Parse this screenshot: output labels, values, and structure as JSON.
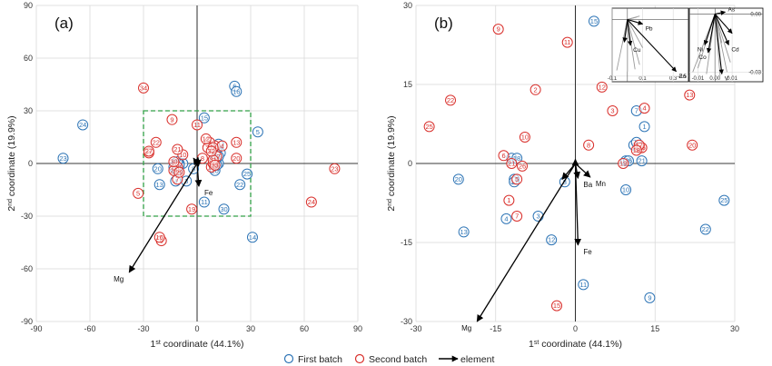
{
  "colors": {
    "first": "#2e75b6",
    "second": "#d9302c",
    "arrow": "#000000",
    "box": "#33a047",
    "grid": "#d9d9d9"
  },
  "legend": {
    "first": "First batch",
    "second": "Second batch",
    "element": "element"
  },
  "chart_data": [
    {
      "type": "scatter",
      "panel_label": "(a)",
      "xlabel_main": "1",
      "xlabel_sup": "st",
      "xlabel_rest": " coordinate (44.1%)",
      "ylabel_main": "2",
      "ylabel_sup": "nd",
      "ylabel_rest": " coordinate (19.9%)",
      "xlim": [
        -90,
        90
      ],
      "ylim": [
        -90,
        90
      ],
      "xticks": [
        -90,
        -60,
        -30,
        0,
        30,
        60,
        90
      ],
      "yticks": [
        -90,
        -60,
        -30,
        0,
        30,
        60,
        90
      ],
      "grid": true,
      "box": [
        -30,
        -30,
        30,
        30
      ],
      "first": [
        {
          "label": "1",
          "x": 10,
          "y": 2
        },
        {
          "label": "2",
          "x": 13,
          "y": 6
        },
        {
          "label": "3",
          "x": -6,
          "y": -10
        },
        {
          "label": "4",
          "x": -12,
          "y": -10
        },
        {
          "label": "5",
          "x": 34,
          "y": 18
        },
        {
          "label": "6",
          "x": 21,
          "y": 44
        },
        {
          "label": "7",
          "x": 12,
          "y": 11
        },
        {
          "label": "8",
          "x": -2,
          "y": -3
        },
        {
          "label": "9",
          "x": -8,
          "y": 0
        },
        {
          "label": "10",
          "x": 10,
          "y": -4
        },
        {
          "label": "11",
          "x": 4,
          "y": -22
        },
        {
          "label": "12",
          "x": 11,
          "y": 8
        },
        {
          "label": "13",
          "x": -21,
          "y": -12
        },
        {
          "label": "14",
          "x": 31,
          "y": -42
        },
        {
          "label": "15",
          "x": 4,
          "y": 26
        },
        {
          "label": "16",
          "x": 22,
          "y": 41
        },
        {
          "label": "17",
          "x": -10,
          "y": 0
        },
        {
          "label": "18",
          "x": -13,
          "y": -2
        },
        {
          "label": "19",
          "x": -11,
          "y": -4
        },
        {
          "label": "20",
          "x": -22,
          "y": -3
        },
        {
          "label": "21",
          "x": -10,
          "y": -1
        },
        {
          "label": "22",
          "x": 24,
          "y": -12
        },
        {
          "label": "23",
          "x": -75,
          "y": 3
        },
        {
          "label": "24",
          "x": -64,
          "y": 22
        },
        {
          "label": "25",
          "x": 28,
          "y": -6
        },
        {
          "label": "26",
          "x": 12,
          "y": 0
        },
        {
          "label": "27",
          "x": -11,
          "y": 1
        },
        {
          "label": "28",
          "x": 12,
          "y": 4
        },
        {
          "label": "29",
          "x": 11,
          "y": -1
        },
        {
          "label": "30",
          "x": 15,
          "y": -26
        }
      ],
      "second": [
        {
          "label": "1",
          "x": 10,
          "y": 10
        },
        {
          "label": "2",
          "x": 7,
          "y": 12
        },
        {
          "label": "3",
          "x": 6,
          "y": 9
        },
        {
          "label": "4",
          "x": 14,
          "y": 10
        },
        {
          "label": "5",
          "x": -33,
          "y": -17
        },
        {
          "label": "6",
          "x": -20,
          "y": -44
        },
        {
          "label": "7",
          "x": -11,
          "y": -9
        },
        {
          "label": "8",
          "x": 3,
          "y": 3
        },
        {
          "label": "9",
          "x": -14,
          "y": 25
        },
        {
          "label": "10",
          "x": -8,
          "y": 5
        },
        {
          "label": "11",
          "x": 0,
          "y": 22
        },
        {
          "label": "12",
          "x": 5,
          "y": 14
        },
        {
          "label": "13",
          "x": 22,
          "y": 12
        },
        {
          "label": "14",
          "x": 9,
          "y": 9
        },
        {
          "label": "15",
          "x": 8,
          "y": -2
        },
        {
          "label": "16",
          "x": -21,
          "y": -42
        },
        {
          "label": "17",
          "x": 11,
          "y": 4
        },
        {
          "label": "18",
          "x": -11,
          "y": -2
        },
        {
          "label": "19",
          "x": -3,
          "y": -26
        },
        {
          "label": "20",
          "x": 22,
          "y": 3
        },
        {
          "label": "21",
          "x": -11,
          "y": 8
        },
        {
          "label": "22",
          "x": -23,
          "y": 12
        },
        {
          "label": "23",
          "x": 77,
          "y": -3
        },
        {
          "label": "24",
          "x": 64,
          "y": -22
        },
        {
          "label": "25",
          "x": -27,
          "y": 6
        },
        {
          "label": "26",
          "x": 9,
          "y": 0
        },
        {
          "label": "27",
          "x": -27,
          "y": 7
        },
        {
          "label": "28",
          "x": -13,
          "y": -4
        },
        {
          "label": "29",
          "x": -10,
          "y": -5
        },
        {
          "label": "30",
          "x": -13,
          "y": 1
        },
        {
          "label": "31",
          "x": 9,
          "y": 2
        },
        {
          "label": "32",
          "x": 8,
          "y": 7
        },
        {
          "label": "33",
          "x": 10,
          "y": -1
        },
        {
          "label": "34",
          "x": -30,
          "y": 43
        }
      ],
      "vectors": [
        {
          "label": "Mg",
          "x": -38,
          "y": -62
        },
        {
          "label": "Fe",
          "x": 1,
          "y": -13
        },
        {
          "label": "",
          "x": -2,
          "y": 3
        },
        {
          "label": "",
          "x": 0.5,
          "y": 3.5
        },
        {
          "label": "",
          "x": 2,
          "y": 2
        }
      ]
    },
    {
      "type": "scatter",
      "panel_label": "(b)",
      "xlabel_main": "1",
      "xlabel_sup": "st",
      "xlabel_rest": " coordinate (44.1%)",
      "ylabel_main": "2",
      "ylabel_sup": "nd",
      "ylabel_rest": " coordinate (19.9%)",
      "xlim": [
        -30,
        30
      ],
      "ylim": [
        -30,
        30
      ],
      "xticks": [
        -30,
        -15,
        0,
        15,
        30
      ],
      "yticks": [
        -30,
        -15,
        0,
        15,
        30
      ],
      "grid": true,
      "first": [
        {
          "label": "1",
          "x": 13,
          "y": 7
        },
        {
          "label": "2",
          "x": 11,
          "y": 3.5
        },
        {
          "label": "3",
          "x": -7,
          "y": -10
        },
        {
          "label": "4",
          "x": -13,
          "y": -10.5
        },
        {
          "label": "5",
          "x": 11.5,
          "y": 4
        },
        {
          "label": "6",
          "x": 12,
          "y": 3
        },
        {
          "label": "7",
          "x": 11.5,
          "y": 10
        },
        {
          "label": "8",
          "x": -2,
          "y": -3.5
        },
        {
          "label": "9",
          "x": 14,
          "y": -25.5
        },
        {
          "label": "10",
          "x": 9.5,
          "y": -5
        },
        {
          "label": "11",
          "x": 1.5,
          "y": -23
        },
        {
          "label": "12",
          "x": -4.5,
          "y": -14.5
        },
        {
          "label": "13",
          "x": -21,
          "y": -13
        },
        {
          "label": "14",
          "x": -12,
          "y": 1
        },
        {
          "label": "15",
          "x": 3.5,
          "y": 27
        },
        {
          "label": "16",
          "x": -11.5,
          "y": -3
        },
        {
          "label": "17",
          "x": -11.5,
          "y": -3.5
        },
        {
          "label": "18",
          "x": -11,
          "y": 1
        },
        {
          "label": "19",
          "x": 9.5,
          "y": 0.5
        },
        {
          "label": "20",
          "x": -22,
          "y": -3
        },
        {
          "label": "21",
          "x": 12.5,
          "y": 0.5
        },
        {
          "label": "22",
          "x": 24.5,
          "y": -12.5
        },
        {
          "label": "25",
          "x": 28,
          "y": -7
        },
        {
          "label": "26",
          "x": 10,
          "y": 0.5
        }
      ],
      "second": [
        {
          "label": "1",
          "x": -12.5,
          "y": -7
        },
        {
          "label": "2",
          "x": -7.5,
          "y": 14
        },
        {
          "label": "3",
          "x": 7,
          "y": 10
        },
        {
          "label": "4",
          "x": 13,
          "y": 10.5
        },
        {
          "label": "5",
          "x": -11,
          "y": -3
        },
        {
          "label": "6",
          "x": -13.5,
          "y": 1.5
        },
        {
          "label": "7",
          "x": -11,
          "y": -10
        },
        {
          "label": "8",
          "x": 2.5,
          "y": 3.5
        },
        {
          "label": "9",
          "x": -14.5,
          "y": 25.5
        },
        {
          "label": "10",
          "x": -9.5,
          "y": 5
        },
        {
          "label": "11",
          "x": -1.5,
          "y": 23
        },
        {
          "label": "12",
          "x": 5,
          "y": 14.5
        },
        {
          "label": "13",
          "x": 21.5,
          "y": 13
        },
        {
          "label": "14",
          "x": 12,
          "y": 3
        },
        {
          "label": "15",
          "x": -3.5,
          "y": -27
        },
        {
          "label": "16",
          "x": 12.5,
          "y": 3
        },
        {
          "label": "17",
          "x": 12,
          "y": 3.5
        },
        {
          "label": "18",
          "x": 11.5,
          "y": 2.5
        },
        {
          "label": "19",
          "x": 9,
          "y": 0
        },
        {
          "label": "20",
          "x": 22,
          "y": 3.5
        },
        {
          "label": "21",
          "x": -12,
          "y": 0
        },
        {
          "label": "22",
          "x": -23.5,
          "y": 12
        },
        {
          "label": "25",
          "x": -27.5,
          "y": 7
        },
        {
          "label": "26",
          "x": -10,
          "y": -0.5
        }
      ],
      "vectors": [
        {
          "label": "Mg",
          "x": -18.5,
          "y": -30
        },
        {
          "label": "Fe",
          "x": 0.5,
          "y": -15.5
        },
        {
          "label": "Ba",
          "x": 0.5,
          "y": -2.8
        },
        {
          "label": "Mn",
          "x": 2.8,
          "y": -2.6
        },
        {
          "label": "",
          "x": -2.5,
          "y": -3
        },
        {
          "label": "",
          "x": 0,
          "y": 0.8
        }
      ],
      "insets": [
        {
          "xlim": [
            -0.1,
            0.4
          ],
          "ylim": [
            -0.55,
            0.1
          ],
          "xticks": [
            {
              "v": -0.1,
              "t": "-0.1"
            },
            {
              "v": 0.1,
              "t": "0.1"
            },
            {
              "v": 0.3,
              "t": "0.3"
            }
          ],
          "yticks": [
            {
              "v": -0.5,
              "t": "-0.5"
            }
          ],
          "grey": [
            [
              -0.07,
              -0.45
            ],
            [
              0.0,
              -0.46
            ],
            [
              0.05,
              -0.44
            ],
            [
              0.08,
              -0.4
            ],
            [
              0.1,
              -0.25
            ],
            [
              0.06,
              0.02
            ],
            [
              0.08,
              0.03
            ],
            [
              -0.03,
              -0.2
            ]
          ],
          "vectors": [
            {
              "label": "Pb",
              "x": 0.1,
              "y": -0.04
            },
            {
              "label": "Cu",
              "x": 0.02,
              "y": -0.23
            },
            {
              "label": "Zn",
              "x": 0.32,
              "y": -0.46
            },
            {
              "label": "",
              "x": -0.02,
              "y": -0.2
            }
          ]
        },
        {
          "xlim": [
            -0.015,
            0.028
          ],
          "ylim": [
            -0.035,
            0.003
          ],
          "xticks": [
            {
              "v": -0.01,
              "t": "-0.01"
            },
            {
              "v": 0.0,
              "t": "0.00"
            },
            {
              "v": 0.01,
              "t": "0.01"
            }
          ],
          "yticks": [
            {
              "v": 0.0,
              "t": "0.00"
            },
            {
              "v": -0.03,
              "t": "-0.03"
            }
          ],
          "grey": [
            [
              -0.013,
              -0.03
            ],
            [
              -0.01,
              -0.028
            ],
            [
              -0.005,
              -0.031
            ],
            [
              0.0,
              -0.033
            ],
            [
              0.003,
              -0.032
            ],
            [
              0.007,
              -0.03
            ],
            [
              0.009,
              -0.025
            ],
            [
              0.004,
              -0.015
            ]
          ],
          "vectors": [
            {
              "label": "As",
              "x": 0.006,
              "y": 0.001
            },
            {
              "label": "Ni",
              "x": -0.006,
              "y": -0.016
            },
            {
              "label": "Co",
              "x": -0.004,
              "y": -0.02
            },
            {
              "label": "Cd",
              "x": 0.008,
              "y": -0.016
            },
            {
              "label": "V",
              "x": 0.004,
              "y": -0.031
            },
            {
              "label": "",
              "x": 0.01,
              "y": -0.01
            }
          ]
        }
      ]
    }
  ]
}
